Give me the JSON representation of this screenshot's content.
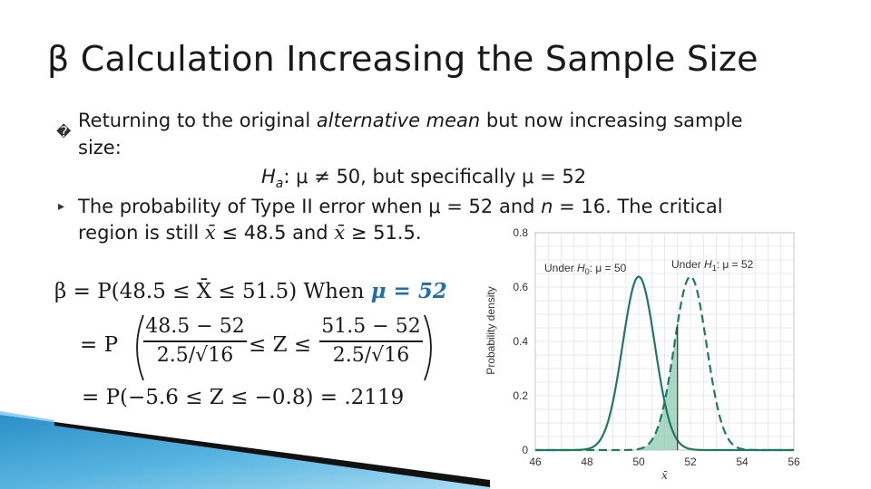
{
  "title": "β Calculation Increasing the Sample Size",
  "bullets": [
    {
      "glyph": "�",
      "text_a": "Returning to the original ",
      "text_italic": "alternative mean",
      "text_b": " but now increasing sample",
      "text_c": "size:"
    },
    {
      "glyph": "▸",
      "line1_a": "The probability of Type II error when  μ = 52 and ",
      "line1_n": "n",
      "line1_b": " = 16.  The critical",
      "line2_a": "region is still ",
      "line2_x1": "x̄",
      "line2_b": " ≤ 48.5 and ",
      "line2_x2": "x̄",
      "line2_c": " ≥ 51.5."
    }
  ],
  "hypothesis": {
    "H": "H",
    "sub": "a",
    "rest": ": μ ≠ 50, but specifically μ = 52"
  },
  "formula": {
    "line1_a": "β = P(48.5 ≤ X̄ ≤ 51.5) When ",
    "line1_b": "μ = 52",
    "line2_prefix": "= P",
    "frac1_num": "48.5 − 52",
    "frac1_den": "2.5/√16",
    "mid": "≤ Z ≤",
    "frac2_num": "51.5 − 52",
    "frac2_den": "2.5/√16",
    "line3": "= P(−5.6 ≤ Z ≤ −0.8) = .2119"
  },
  "chart_data": {
    "type": "line",
    "xlabel": "x̄",
    "ylabel": "Probability density",
    "xlim": [
      46,
      56
    ],
    "ylim": [
      0,
      0.8
    ],
    "x_ticks": [
      "46",
      "48",
      "50",
      "52",
      "54",
      "56"
    ],
    "y_ticks": [
      "0",
      "0.2",
      "0.4",
      "0.6",
      "0.8"
    ],
    "series": [
      {
        "name": "Under H0: μ = 50",
        "mean": 50,
        "sd": 0.625,
        "style": "solid"
      },
      {
        "name": "Under H1: μ = 52",
        "mean": 52,
        "sd": 0.625,
        "style": "dashed"
      }
    ],
    "annotations": [
      {
        "label_a": "Under ",
        "label_h": "H",
        "label_sub": "0",
        "label_b": ": μ = 50"
      },
      {
        "label_a": "Under ",
        "label_h": "H",
        "label_sub": "1",
        "label_b": ": μ = 52"
      }
    ],
    "shaded_region": [
      48.5,
      51.5
    ],
    "critical_line": 51.5,
    "line_color": "#1f7a63",
    "fill_color": "#8fc9b4"
  }
}
